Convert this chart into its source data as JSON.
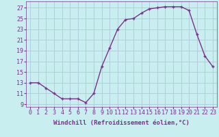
{
  "x": [
    0,
    1,
    2,
    3,
    4,
    5,
    6,
    7,
    8,
    9,
    10,
    11,
    12,
    13,
    14,
    15,
    16,
    17,
    18,
    19,
    20,
    21,
    22,
    23
  ],
  "y": [
    13,
    13,
    12,
    11,
    10,
    10,
    10,
    9.3,
    11,
    16,
    19.5,
    23,
    24.8,
    25,
    26,
    26.8,
    27,
    27.2,
    27.2,
    27.2,
    26.5,
    22,
    18,
    16
  ],
  "line_color": "#7b2f8c",
  "marker": "+",
  "marker_size": 3,
  "bg_color": "#c8eef0",
  "grid_color": "#b0c8d8",
  "xlabel": "Windchill (Refroidissement éolien,°C)",
  "ylabel_ticks": [
    9,
    11,
    13,
    15,
    17,
    19,
    21,
    23,
    25,
    27
  ],
  "xticks": [
    0,
    1,
    2,
    3,
    4,
    5,
    6,
    7,
    8,
    9,
    10,
    11,
    12,
    13,
    14,
    15,
    16,
    17,
    18,
    19,
    20,
    21,
    22,
    23
  ],
  "ylim": [
    8.5,
    28.2
  ],
  "xlim": [
    -0.5,
    23.5
  ],
  "xlabel_fontsize": 6.5,
  "tick_fontsize": 6,
  "line_width": 1.0,
  "marker_edge_width": 1.0
}
